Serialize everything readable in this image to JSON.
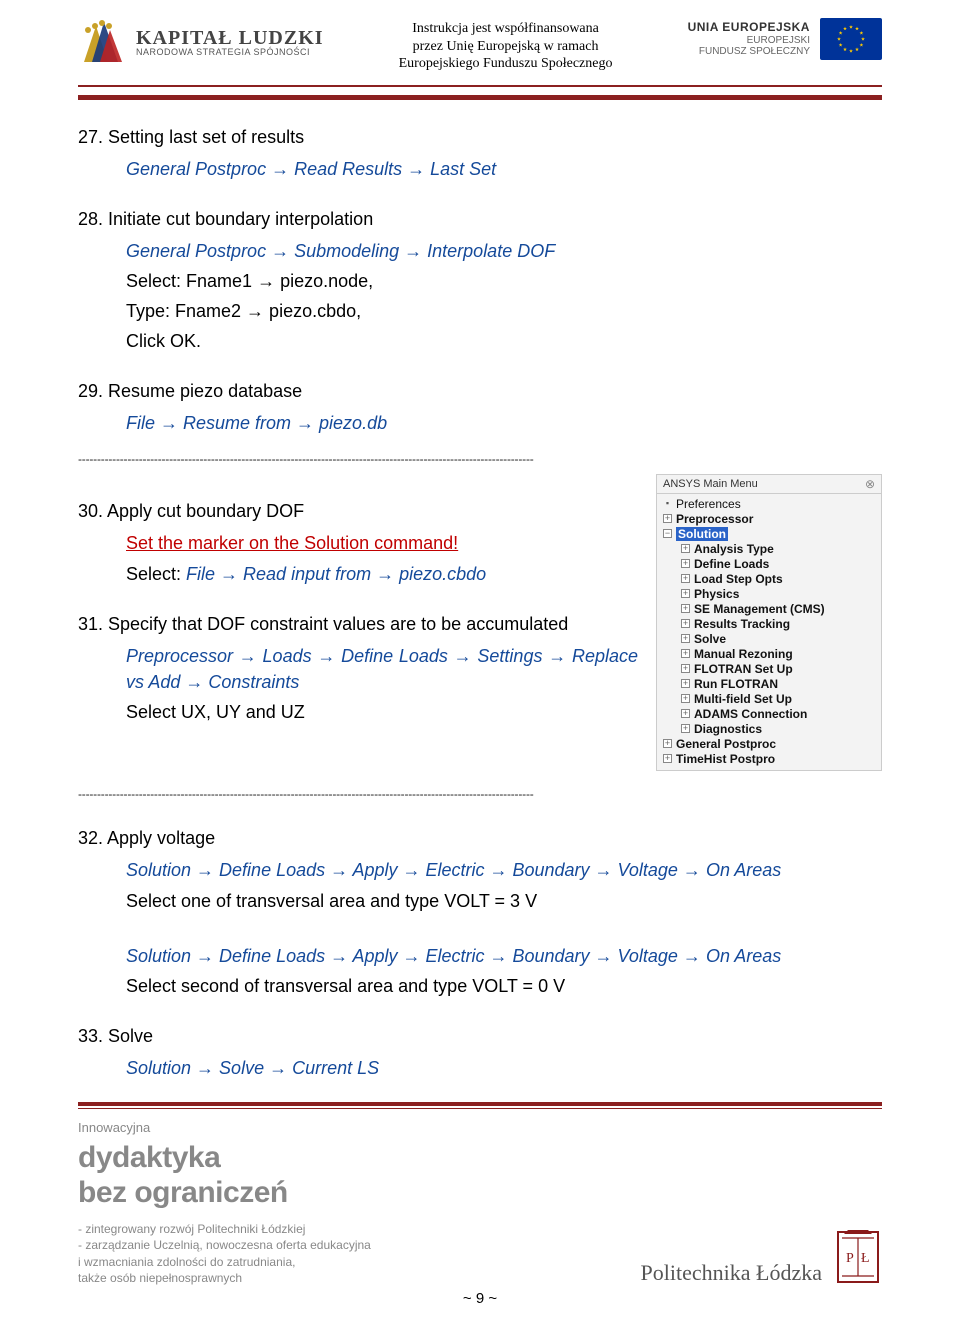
{
  "header": {
    "left": {
      "title": "KAPITAŁ LUDZKI",
      "subtitle": "NARODOWA STRATEGIA SPÓJNOŚCI"
    },
    "center": {
      "l1": "Instrukcja jest współfinansowana",
      "l2": "przez Unię Europejską w ramach",
      "l3": "Europejskiego Funduszu Społecznego"
    },
    "right": {
      "t1": "UNIA EUROPEJSKA",
      "t2": "EUROPEJSKI",
      "t3": "FUNDUSZ SPOŁECZNY"
    }
  },
  "colors": {
    "rule": "#8b2020",
    "blue": "#154a9a",
    "red": "#c00000",
    "menu_sel_bg": "#2a63c8",
    "eu_flag_bg": "#003399",
    "eu_star": "#ffcc00"
  },
  "s27": {
    "title": "27. Setting last set of results",
    "l1": "General Postproc → Read Results → Last Set"
  },
  "s28": {
    "title": "28. Initiate cut boundary interpolation",
    "l1": "General Postproc → Submodeling → Interpolate DOF",
    "l2": "Select: Fname1 → piezo.node,",
    "l3": "Type: Fname2 → piezo.cbdo,",
    "l4": "Click OK."
  },
  "s29": {
    "title": "29. Resume piezo database",
    "l1": "File → Resume from → piezo.db"
  },
  "s30": {
    "title": "30. Apply cut boundary DOF",
    "red": "Set the marker on the Solution command!",
    "l1": "Select: File → Read input from → piezo.cbdo"
  },
  "s31": {
    "title": "31. Specify that DOF constraint values are to be accumulated",
    "l1": "Preprocessor → Loads → Define Loads → Settings → Replace vs Add → Constraints",
    "l2": "Select UX, UY and UZ"
  },
  "s32": {
    "title": "32. Apply voltage",
    "l1": "Solution → Define Loads → Apply → Electric → Boundary → Voltage → On Areas",
    "l2": "Select one of transversal area and type VOLT = 3 V",
    "l3": "Solution → Define Loads → Apply → Electric → Boundary → Voltage → On Areas",
    "l4": "Select second of transversal area and type VOLT = 0 V"
  },
  "s33": {
    "title": "33. Solve",
    "l1": "Solution → Solve → Current LS"
  },
  "menu": {
    "title": "ANSYS Main Menu",
    "items": [
      "Preferences",
      "Preprocessor",
      "Solution",
      "Analysis Type",
      "Define Loads",
      "Load Step Opts",
      "Physics",
      "SE Management (CMS)",
      "Results Tracking",
      "Solve",
      "Manual Rezoning",
      "FLOTRAN Set Up",
      "Run FLOTRAN",
      "Multi-field Set Up",
      "ADAMS Connection",
      "Diagnostics",
      "General Postproc",
      "TimeHist Postpro"
    ],
    "selected_index": 2,
    "sub_start": 3,
    "sub_end": 15
  },
  "footer": {
    "innowacyjna": "Innowacyjna",
    "dyd": "dydaktyka",
    "bez": "bez ograniczeń",
    "d1": "- zintegrowany rozwój Politechniki Łódzkiej",
    "d2": "- zarządzanie Uczelnią,  nowoczesna oferta edukacyjna",
    "d3": "i wzmacniania zdolności do zatrudniania,",
    "d4": "także osób niepełnosprawnych",
    "pl": "Politechnika Łódzka"
  },
  "pagenum": "~ 9 ~",
  "dash_line": "------------------------------------------------------------------------------------------------------------------------"
}
